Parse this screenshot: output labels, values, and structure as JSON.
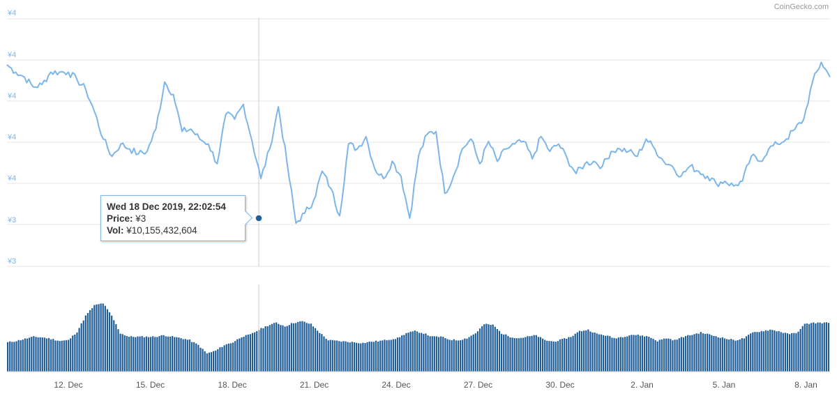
{
  "credit": "CoinGecko.com",
  "tooltip": {
    "date": "Wed 18 Dec 2019, 22:02:54",
    "price_label": "Price:",
    "price_value": "¥3",
    "vol_label": "Vol:",
    "vol_value": "¥10,155,432,604"
  },
  "colors": {
    "price_line": "#7cb5ec",
    "volume_bar": "#1f5d99",
    "axis_label": "#7cb5ec",
    "grid": "#e6e6e6",
    "crosshair": "#cccccc",
    "marker": "#1f5d99"
  },
  "chart_data": [
    {
      "type": "line",
      "series": [
        {
          "name": "Price",
          "values": [
            4.02,
            3.99,
            3.97,
            3.93,
            3.94,
            3.99,
            3.99,
            3.99,
            3.96,
            3.92,
            3.83,
            3.72,
            3.65,
            3.7,
            3.68,
            3.66,
            3.67,
            3.76,
            3.95,
            3.9,
            3.75,
            3.76,
            3.72,
            3.7,
            3.62,
            3.82,
            3.8,
            3.86,
            3.71,
            3.56,
            3.68,
            3.85,
            3.62,
            3.38,
            3.42,
            3.47,
            3.59,
            3.52,
            3.41,
            3.7,
            3.68,
            3.73,
            3.6,
            3.56,
            3.63,
            3.57,
            3.4,
            3.65,
            3.74,
            3.75,
            3.5,
            3.57,
            3.68,
            3.72,
            3.62,
            3.71,
            3.63,
            3.68,
            3.7,
            3.71,
            3.64,
            3.73,
            3.67,
            3.7,
            3.64,
            3.58,
            3.62,
            3.63,
            3.61,
            3.67,
            3.68,
            3.67,
            3.65,
            3.72,
            3.68,
            3.63,
            3.61,
            3.57,
            3.61,
            3.59,
            3.57,
            3.54,
            3.55,
            3.53,
            3.55,
            3.65,
            3.63,
            3.68,
            3.7,
            3.72,
            3.76,
            3.8,
            3.95,
            4.03,
            3.97
          ]
        }
      ],
      "x_ticks": [
        "12. Dec",
        "15. Dec",
        "18. Dec",
        "21. Dec",
        "24. Dec",
        "27. Dec",
        "30. Dec",
        "2. Jan",
        "5. Jan",
        "8. Jan"
      ],
      "y_ticks": [
        "¥4",
        "¥4",
        "¥4",
        "¥4",
        "¥4",
        "¥3",
        "¥3"
      ],
      "highlight": {
        "date": "Wed 18 Dec 2019, 22:02:54",
        "price": "¥3",
        "volume": 10155432604
      }
    },
    {
      "type": "bar",
      "series": [
        {
          "name": "Vol",
          "values": [
            0.42,
            0.44,
            0.47,
            0.5,
            0.49,
            0.47,
            0.44,
            0.45,
            0.57,
            0.8,
            0.95,
            0.98,
            0.8,
            0.55,
            0.5,
            0.5,
            0.5,
            0.5,
            0.52,
            0.5,
            0.48,
            0.45,
            0.38,
            0.26,
            0.3,
            0.38,
            0.42,
            0.5,
            0.53,
            0.6,
            0.66,
            0.7,
            0.65,
            0.7,
            0.72,
            0.68,
            0.56,
            0.45,
            0.44,
            0.43,
            0.42,
            0.41,
            0.43,
            0.44,
            0.46,
            0.48,
            0.55,
            0.58,
            0.55,
            0.5,
            0.5,
            0.46,
            0.45,
            0.48,
            0.55,
            0.68,
            0.67,
            0.55,
            0.5,
            0.48,
            0.5,
            0.52,
            0.45,
            0.43,
            0.46,
            0.5,
            0.58,
            0.6,
            0.54,
            0.52,
            0.48,
            0.5,
            0.53,
            0.52,
            0.5,
            0.44,
            0.48,
            0.45,
            0.5,
            0.53,
            0.56,
            0.53,
            0.5,
            0.47,
            0.45,
            0.48,
            0.56,
            0.58,
            0.6,
            0.58,
            0.54,
            0.55,
            0.68,
            0.7,
            0.7
          ]
        }
      ]
    }
  ]
}
